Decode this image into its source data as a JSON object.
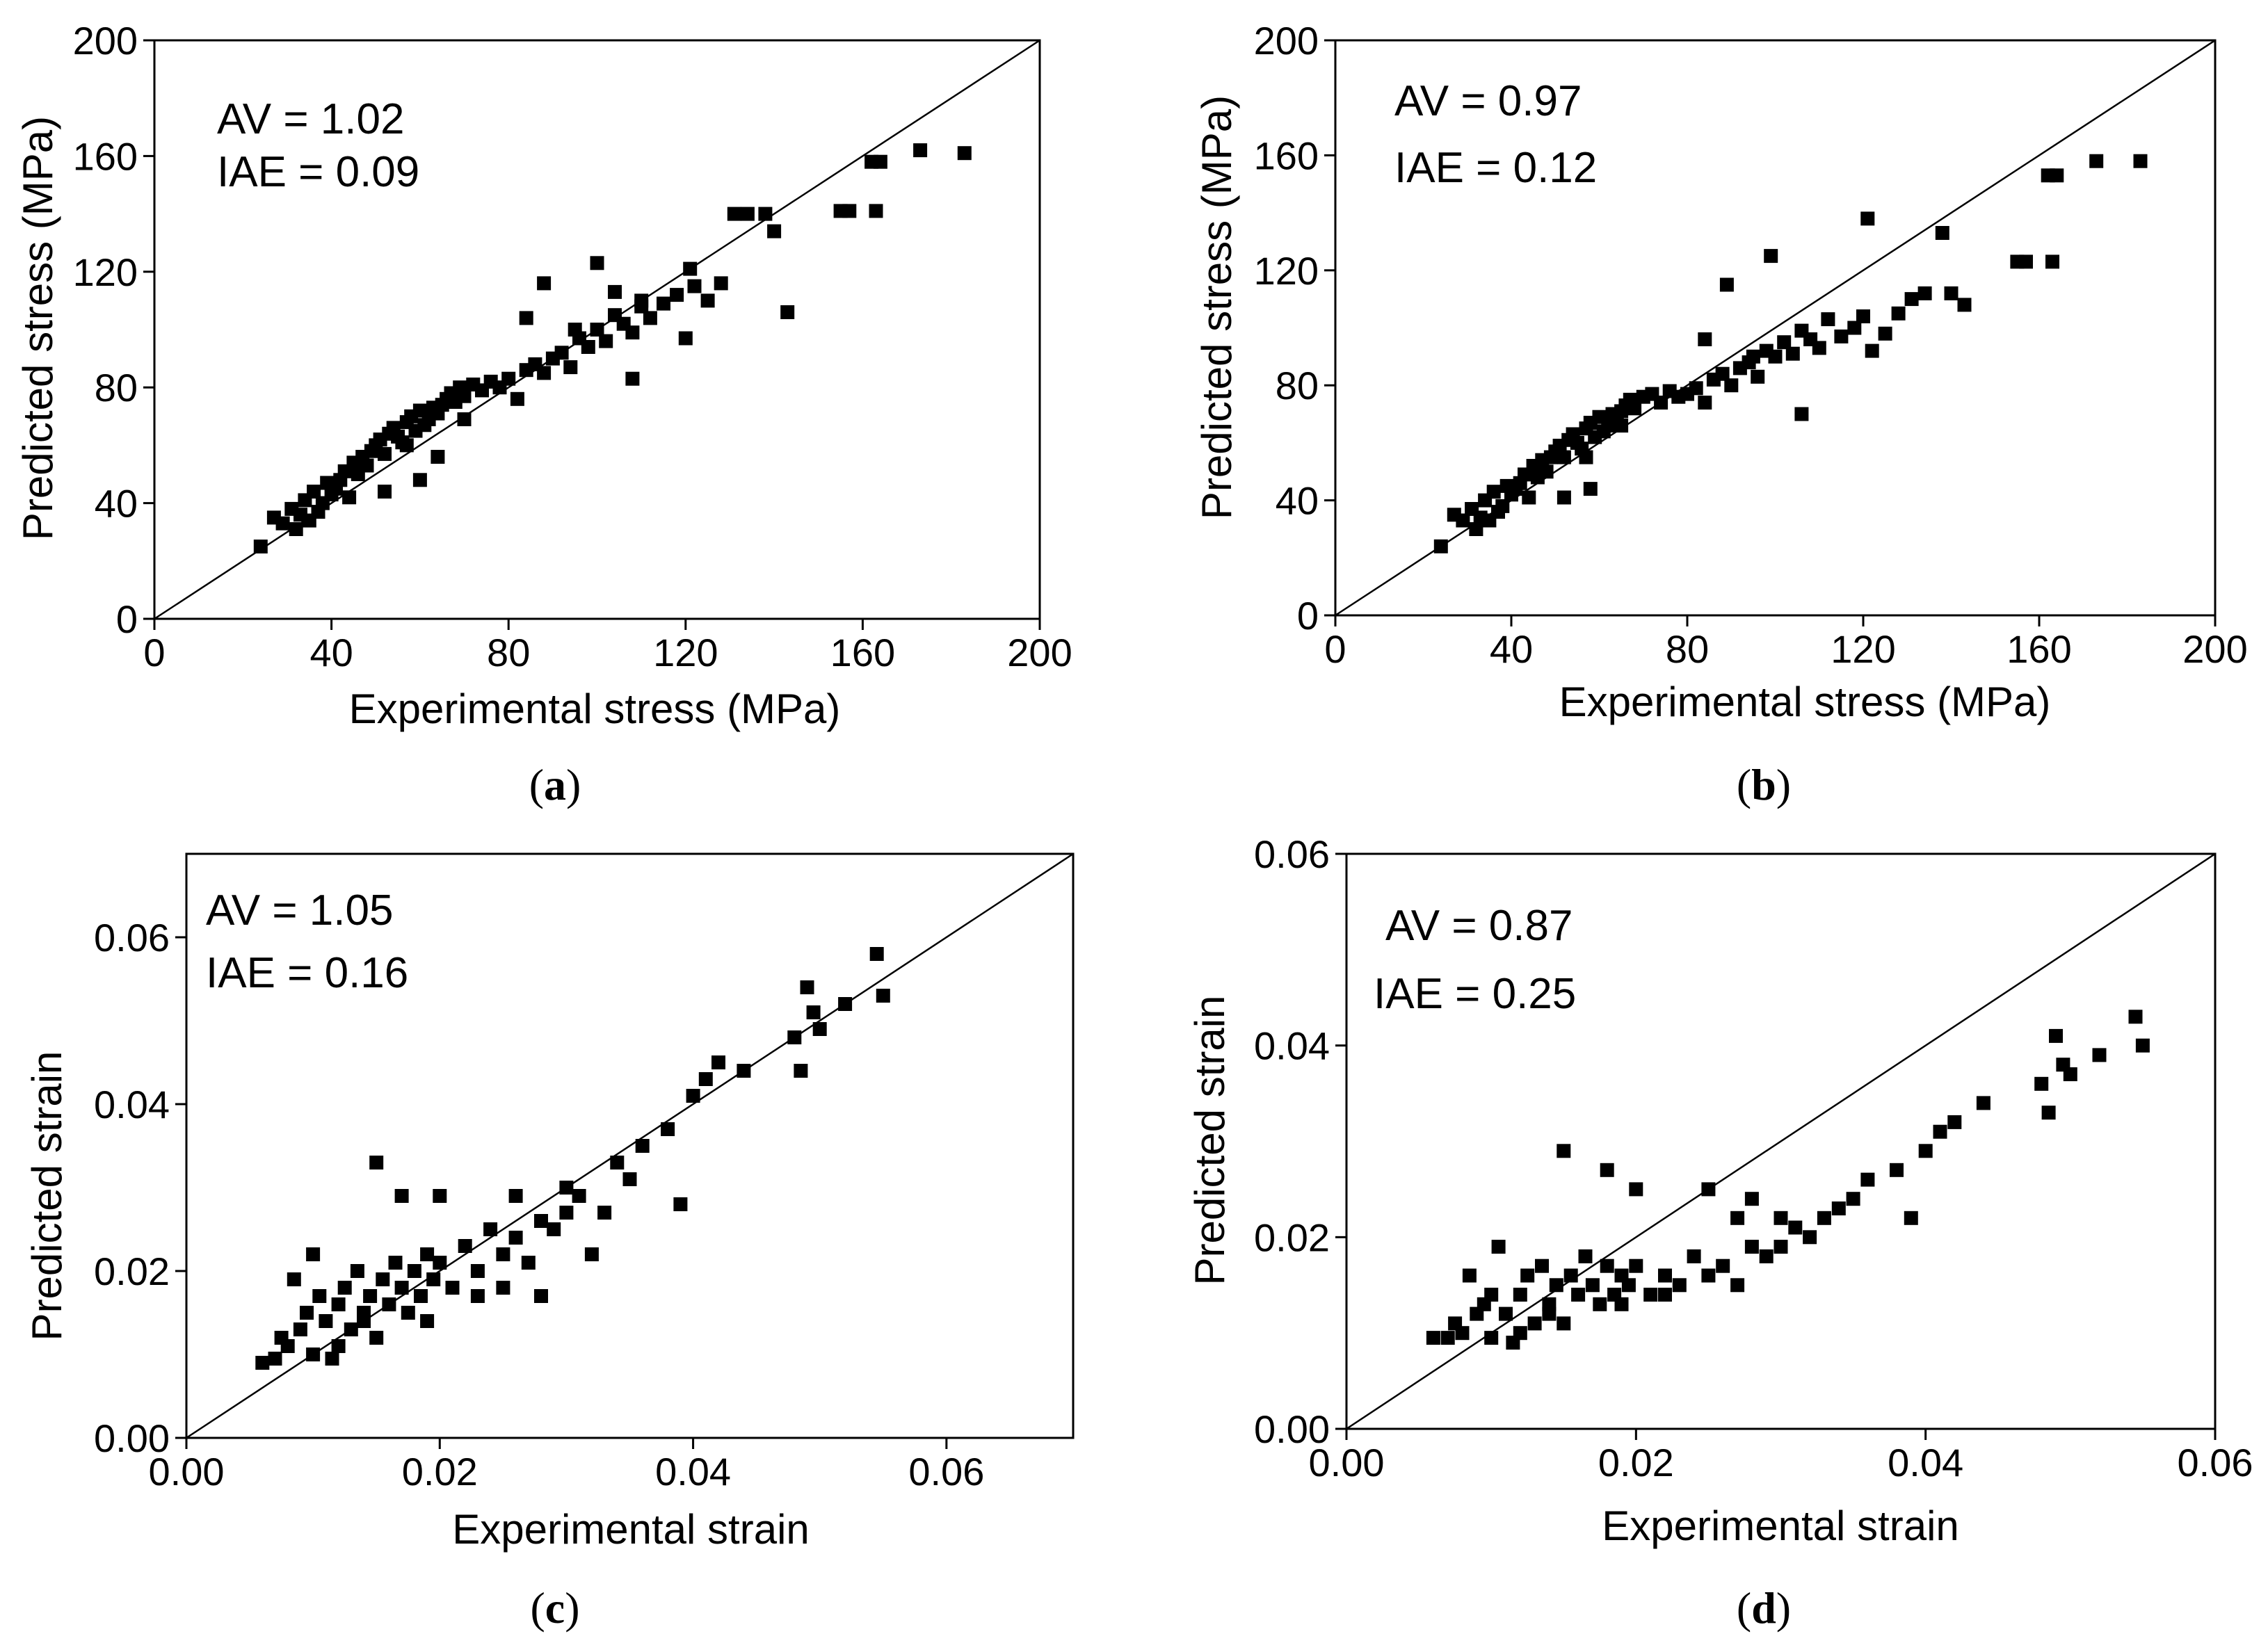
{
  "figure": {
    "panels": [
      {
        "panel_label": {
          "open": "(",
          "letter": "a",
          "close": ")"
        },
        "letter_bold": true,
        "stats": {
          "av": "AV = 1.02",
          "iae": "IAE = 0.09"
        }
      },
      {
        "panel_label": {
          "open": "(",
          "letter": "b",
          "close": ")"
        },
        "letter_bold": true,
        "stats": {
          "av": "AV = 0.97",
          "iae": "IAE = 0.12"
        }
      },
      {
        "panel_label": {
          "open": "(",
          "letter": "c",
          "close": ")"
        },
        "letter_bold": false,
        "stats": {
          "av": "AV = 1.05",
          "iae": "IAE = 0.16"
        }
      },
      {
        "panel_label": {
          "open": "(",
          "letter": "d",
          "close": ")"
        },
        "letter_bold": true,
        "stats": {
          "av": "AV = 0.87",
          "iae": "IAE = 0.25"
        }
      }
    ]
  },
  "colors": {
    "marker": "#000000",
    "axis": "#000000",
    "background": "#ffffff"
  },
  "chart_data": [
    {
      "type": "scatter",
      "title": "",
      "xlabel": "Experimental stress (MPa)",
      "ylabel": "Predicted  stress (MPa)",
      "xlim": [
        0,
        200
      ],
      "ylim": [
        0,
        200
      ],
      "xticks": [
        0,
        40,
        80,
        120,
        160,
        200
      ],
      "yticks": [
        0,
        40,
        80,
        120,
        160,
        200
      ],
      "tick_format": "int",
      "reference_line": "y = x",
      "marker": "square",
      "series": [
        {
          "name": "data",
          "x": [
            24,
            27,
            29,
            31,
            32,
            33,
            34,
            35,
            36,
            37,
            38,
            39,
            40,
            41,
            42,
            43,
            44,
            45,
            46,
            47,
            48,
            49,
            50,
            51,
            52,
            53,
            54,
            55,
            56,
            57,
            58,
            59,
            60,
            61,
            62,
            63,
            64,
            65,
            66,
            67,
            68,
            69,
            70,
            72,
            74,
            76,
            78,
            80,
            82,
            84,
            86,
            88,
            90,
            92,
            94,
            96,
            98,
            100,
            102,
            104,
            106,
            108,
            110,
            112,
            115,
            118,
            120,
            122,
            125,
            128,
            131,
            134,
            138,
            140,
            143,
            155,
            157,
            162,
            163,
            164,
            173,
            183,
            88,
            100,
            104,
            110,
            121,
            84,
            95,
            108,
            60,
            52,
            57,
            64,
            70
          ],
          "y": [
            25,
            35,
            33,
            38,
            31,
            36,
            41,
            34,
            44,
            37,
            40,
            47,
            43,
            45,
            48,
            51,
            42,
            54,
            50,
            56,
            53,
            58,
            60,
            62,
            57,
            64,
            66,
            63,
            61,
            68,
            70,
            65,
            72,
            67,
            69,
            73,
            71,
            74,
            76,
            78,
            75,
            80,
            77,
            81,
            79,
            82,
            80,
            83,
            76,
            86,
            88,
            85,
            90,
            92,
            87,
            97,
            94,
            100,
            96,
            105,
            102,
            99,
            110,
            104,
            109,
            112,
            97,
            115,
            110,
            116,
            140,
            140,
            140,
            134,
            106,
            141,
            141,
            158,
            141,
            158,
            162,
            161,
            116,
            123,
            113,
            108,
            121,
            104,
            100,
            83,
            48,
            44,
            60,
            56,
            69
          ]
        }
      ]
    },
    {
      "type": "scatter",
      "title": "",
      "xlabel": "Experimental stress (MPa)",
      "ylabel": "Predicted  stress (MPa)",
      "xlim": [
        0,
        200
      ],
      "ylim": [
        0,
        200
      ],
      "xticks": [
        0,
        40,
        80,
        120,
        160,
        200
      ],
      "yticks": [
        0,
        40,
        80,
        120,
        160,
        200
      ],
      "tick_format": "int",
      "reference_line": "y = x",
      "marker": "square",
      "series": [
        {
          "name": "data",
          "x": [
            24,
            27,
            29,
            31,
            32,
            33,
            34,
            35,
            36,
            37,
            38,
            39,
            40,
            41,
            42,
            43,
            44,
            45,
            46,
            47,
            48,
            49,
            50,
            51,
            52,
            53,
            54,
            55,
            56,
            57,
            58,
            59,
            60,
            61,
            62,
            63,
            64,
            65,
            66,
            67,
            68,
            70,
            72,
            74,
            76,
            78,
            80,
            82,
            84,
            86,
            88,
            90,
            92,
            94,
            96,
            98,
            100,
            102,
            104,
            106,
            108,
            110,
            112,
            115,
            118,
            120,
            122,
            125,
            128,
            131,
            134,
            138,
            140,
            143,
            155,
            157,
            162,
            163,
            164,
            173,
            183,
            89,
            99,
            121,
            84,
            95,
            106,
            58,
            52,
            57,
            65
          ],
          "y": [
            24,
            35,
            33,
            37,
            30,
            34,
            40,
            33,
            43,
            36,
            38,
            45,
            42,
            44,
            46,
            49,
            41,
            52,
            48,
            54,
            50,
            55,
            57,
            59,
            55,
            61,
            63,
            60,
            58,
            65,
            67,
            62,
            69,
            64,
            66,
            70,
            68,
            71,
            73,
            75,
            72,
            76,
            77,
            74,
            78,
            76,
            77,
            79,
            74,
            82,
            84,
            80,
            86,
            88,
            83,
            92,
            90,
            95,
            91,
            99,
            96,
            93,
            103,
            97,
            100,
            104,
            92,
            98,
            105,
            110,
            112,
            133,
            112,
            108,
            123,
            123,
            153,
            123,
            153,
            158,
            158,
            115,
            125,
            138,
            96,
            90,
            70,
            44,
            41,
            55,
            66
          ]
        }
      ]
    },
    {
      "type": "scatter",
      "title": "",
      "xlabel": "Experimental strain",
      "ylabel": "Predicted  strain",
      "xlim": [
        0,
        0.07
      ],
      "ylim": [
        0,
        0.07
      ],
      "xticks": [
        0.0,
        0.02,
        0.04,
        0.06
      ],
      "yticks": [
        0.0,
        0.02,
        0.04,
        0.06
      ],
      "tick_format": "2dp",
      "reference_line": "y = x",
      "marker": "square",
      "series": [
        {
          "name": "data",
          "x": [
            0.006,
            0.007,
            0.0075,
            0.008,
            0.0085,
            0.009,
            0.0095,
            0.01,
            0.0105,
            0.011,
            0.0115,
            0.012,
            0.0125,
            0.013,
            0.0135,
            0.014,
            0.0145,
            0.015,
            0.0155,
            0.016,
            0.0165,
            0.017,
            0.0175,
            0.018,
            0.0185,
            0.019,
            0.0195,
            0.02,
            0.021,
            0.022,
            0.023,
            0.024,
            0.025,
            0.026,
            0.027,
            0.028,
            0.029,
            0.03,
            0.031,
            0.032,
            0.033,
            0.034,
            0.035,
            0.036,
            0.038,
            0.039,
            0.04,
            0.041,
            0.042,
            0.044,
            0.048,
            0.0485,
            0.049,
            0.0495,
            0.05,
            0.052,
            0.0545,
            0.055,
            0.015,
            0.017,
            0.02,
            0.023,
            0.026,
            0.028,
            0.01,
            0.012,
            0.014,
            0.019,
            0.025,
            0.03
          ],
          "y": [
            0.009,
            0.0095,
            0.012,
            0.011,
            0.019,
            0.013,
            0.015,
            0.01,
            0.017,
            0.014,
            0.0095,
            0.016,
            0.018,
            0.013,
            0.02,
            0.015,
            0.017,
            0.012,
            0.019,
            0.016,
            0.021,
            0.018,
            0.015,
            0.02,
            0.017,
            0.022,
            0.019,
            0.021,
            0.018,
            0.023,
            0.02,
            0.025,
            0.022,
            0.024,
            0.021,
            0.026,
            0.025,
            0.027,
            0.029,
            0.022,
            0.027,
            0.033,
            0.031,
            0.035,
            0.037,
            0.028,
            0.041,
            0.043,
            0.045,
            0.044,
            0.048,
            0.044,
            0.054,
            0.051,
            0.049,
            0.052,
            0.058,
            0.053,
            0.033,
            0.029,
            0.029,
            0.017,
            0.029,
            0.017,
            0.022,
            0.011,
            0.014,
            0.014,
            0.018,
            0.03
          ]
        }
      ]
    },
    {
      "type": "scatter",
      "title": "",
      "xlabel": "Experimental strain",
      "ylabel": "Predicted  strain",
      "xlim": [
        0,
        0.06
      ],
      "ylim": [
        0,
        0.06
      ],
      "xticks": [
        0.0,
        0.02,
        0.04,
        0.06
      ],
      "yticks": [
        0.0,
        0.02,
        0.04,
        0.06
      ],
      "tick_format": "2dp",
      "reference_line": "y = x",
      "marker": "square",
      "series": [
        {
          "name": "data",
          "x": [
            0.006,
            0.007,
            0.0075,
            0.008,
            0.0085,
            0.009,
            0.0095,
            0.01,
            0.0105,
            0.011,
            0.0115,
            0.012,
            0.0125,
            0.013,
            0.0135,
            0.014,
            0.0145,
            0.015,
            0.0155,
            0.016,
            0.0165,
            0.017,
            0.0175,
            0.018,
            0.0185,
            0.019,
            0.0195,
            0.02,
            0.021,
            0.022,
            0.023,
            0.024,
            0.025,
            0.026,
            0.027,
            0.028,
            0.029,
            0.03,
            0.031,
            0.032,
            0.033,
            0.034,
            0.035,
            0.036,
            0.038,
            0.039,
            0.04,
            0.041,
            0.042,
            0.044,
            0.048,
            0.0485,
            0.049,
            0.0495,
            0.05,
            0.052,
            0.0545,
            0.055,
            0.015,
            0.018,
            0.02,
            0.025,
            0.027,
            0.028,
            0.01,
            0.012,
            0.014,
            0.019,
            0.03,
            0.022
          ],
          "y": [
            0.0095,
            0.0095,
            0.011,
            0.01,
            0.016,
            0.012,
            0.013,
            0.0095,
            0.019,
            0.012,
            0.009,
            0.014,
            0.016,
            0.011,
            0.017,
            0.013,
            0.015,
            0.011,
            0.016,
            0.014,
            0.018,
            0.015,
            0.013,
            0.017,
            0.014,
            0.016,
            0.015,
            0.017,
            0.014,
            0.016,
            0.015,
            0.018,
            0.016,
            0.017,
            0.015,
            0.019,
            0.018,
            0.019,
            0.021,
            0.02,
            0.022,
            0.023,
            0.024,
            0.026,
            0.027,
            0.022,
            0.029,
            0.031,
            0.032,
            0.034,
            0.036,
            0.033,
            0.041,
            0.038,
            0.037,
            0.039,
            0.043,
            0.04,
            0.029,
            0.027,
            0.025,
            0.025,
            0.022,
            0.024,
            0.014,
            0.01,
            0.012,
            0.013,
            0.022,
            0.014
          ]
        }
      ]
    }
  ]
}
